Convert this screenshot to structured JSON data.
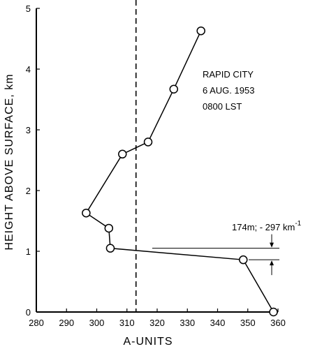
{
  "chart_data": {
    "type": "line",
    "xlabel": "A-UNITS",
    "ylabel": "HEIGHT ABOVE SURFACE, km",
    "xlim": [
      280,
      360
    ],
    "ylim": [
      0,
      5
    ],
    "x_ticks": [
      280,
      290,
      300,
      310,
      320,
      330,
      340,
      350,
      360
    ],
    "y_ticks": [
      0,
      1,
      2,
      3,
      4,
      5
    ],
    "series": [
      {
        "points": [
          {
            "x": 358.5,
            "y": 0.0
          },
          {
            "x": 348.5,
            "y": 0.86
          },
          {
            "x": 304.5,
            "y": 1.05
          },
          {
            "x": 304.0,
            "y": 1.38
          },
          {
            "x": 296.5,
            "y": 1.63
          },
          {
            "x": 308.5,
            "y": 2.6
          },
          {
            "x": 317.0,
            "y": 2.8
          },
          {
            "x": 325.5,
            "y": 3.67
          },
          {
            "x": 334.5,
            "y": 4.63
          }
        ]
      }
    ],
    "reference_line": {
      "x": 313,
      "style": "dashed"
    },
    "annotation_text": {
      "station_lines": [
        "RAPID CITY",
        "6 AUG. 1953",
        "0800 LST"
      ],
      "layer_label": "174m; - 297 km",
      "layer_label_sup": "-1"
    },
    "layer_markers": {
      "upper_y": 1.05,
      "lower_y": 0.86
    }
  }
}
